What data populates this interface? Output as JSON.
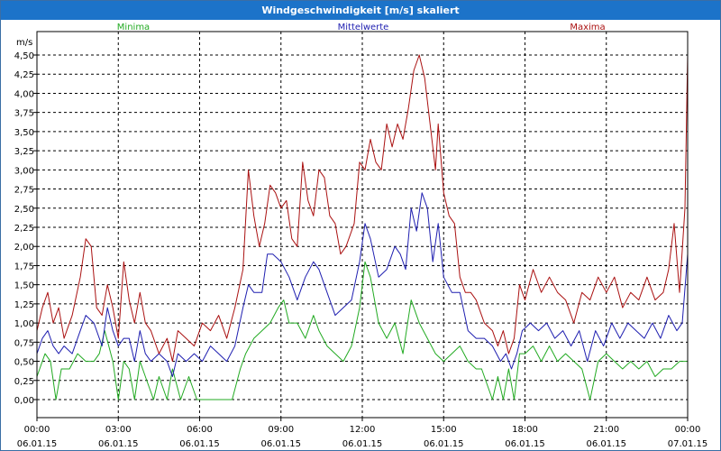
{
  "window": {
    "title": "Windgeschwindigkeit [m/s] skaliert"
  },
  "chart_data": {
    "type": "line",
    "title": "Windgeschwindigkeit [m/s] skaliert",
    "ylabel": "m/s",
    "ylim": [
      0,
      4.5
    ],
    "y_ticks": [
      "0,00",
      "0,25",
      "0,50",
      "0,75",
      "1,00",
      "1,25",
      "1,50",
      "1,75",
      "2,00",
      "2,25",
      "2,50",
      "2,75",
      "3,00",
      "3,25",
      "3,50",
      "3,75",
      "4,00",
      "4,25",
      "4,50"
    ],
    "x_range_hours": [
      0,
      24
    ],
    "x_ticks": [
      {
        "time": "00:00",
        "date": "06.01.15"
      },
      {
        "time": "03:00",
        "date": "06.01.15"
      },
      {
        "time": "06:00",
        "date": "06.01.15"
      },
      {
        "time": "09:00",
        "date": "06.01.15"
      },
      {
        "time": "12:00",
        "date": "06.01.15"
      },
      {
        "time": "15:00",
        "date": "06.01.15"
      },
      {
        "time": "18:00",
        "date": "06.01.15"
      },
      {
        "time": "21:00",
        "date": "06.01.15"
      },
      {
        "time": "00:00",
        "date": "07.01.15"
      }
    ],
    "grid": true,
    "legend_placement": "top",
    "series": [
      {
        "name": "Minima",
        "color": "#22aa22",
        "points": [
          [
            0,
            0.3
          ],
          [
            0.3,
            0.6
          ],
          [
            0.5,
            0.5
          ],
          [
            0.7,
            0.0
          ],
          [
            0.9,
            0.4
          ],
          [
            1.2,
            0.4
          ],
          [
            1.5,
            0.6
          ],
          [
            1.8,
            0.5
          ],
          [
            2.1,
            0.5
          ],
          [
            2.3,
            0.6
          ],
          [
            2.5,
            0.9
          ],
          [
            2.8,
            0.5
          ],
          [
            3.0,
            0.0
          ],
          [
            3.2,
            0.5
          ],
          [
            3.4,
            0.4
          ],
          [
            3.6,
            0.0
          ],
          [
            3.8,
            0.5
          ],
          [
            4.0,
            0.3
          ],
          [
            4.3,
            0.0
          ],
          [
            4.5,
            0.3
          ],
          [
            4.8,
            0.0
          ],
          [
            5.0,
            0.4
          ],
          [
            5.3,
            0.0
          ],
          [
            5.6,
            0.3
          ],
          [
            5.9,
            0.0
          ],
          [
            6.2,
            0.0
          ],
          [
            6.8,
            0.0
          ],
          [
            7.2,
            0.0
          ],
          [
            7.5,
            0.4
          ],
          [
            7.7,
            0.6
          ],
          [
            8.0,
            0.8
          ],
          [
            8.3,
            0.9
          ],
          [
            8.6,
            1.0
          ],
          [
            8.9,
            1.2
          ],
          [
            9.1,
            1.3
          ],
          [
            9.3,
            1.0
          ],
          [
            9.6,
            1.0
          ],
          [
            9.9,
            0.8
          ],
          [
            10.2,
            1.1
          ],
          [
            10.4,
            0.9
          ],
          [
            10.7,
            0.7
          ],
          [
            11.0,
            0.6
          ],
          [
            11.3,
            0.5
          ],
          [
            11.6,
            0.7
          ],
          [
            11.9,
            1.2
          ],
          [
            12.1,
            1.8
          ],
          [
            12.3,
            1.6
          ],
          [
            12.6,
            1.0
          ],
          [
            12.9,
            0.8
          ],
          [
            13.2,
            1.0
          ],
          [
            13.5,
            0.6
          ],
          [
            13.8,
            1.3
          ],
          [
            14.1,
            1.0
          ],
          [
            14.4,
            0.8
          ],
          [
            14.7,
            0.6
          ],
          [
            15.0,
            0.5
          ],
          [
            15.3,
            0.6
          ],
          [
            15.6,
            0.7
          ],
          [
            15.9,
            0.5
          ],
          [
            16.2,
            0.4
          ],
          [
            16.4,
            0.4
          ],
          [
            16.6,
            0.2
          ],
          [
            16.8,
            0.0
          ],
          [
            17.0,
            0.3
          ],
          [
            17.2,
            0.0
          ],
          [
            17.4,
            0.4
          ],
          [
            17.6,
            0.0
          ],
          [
            17.8,
            0.6
          ],
          [
            18.0,
            0.6
          ],
          [
            18.3,
            0.7
          ],
          [
            18.6,
            0.5
          ],
          [
            18.9,
            0.7
          ],
          [
            19.2,
            0.5
          ],
          [
            19.5,
            0.6
          ],
          [
            19.8,
            0.5
          ],
          [
            20.1,
            0.4
          ],
          [
            20.4,
            0.0
          ],
          [
            20.7,
            0.5
          ],
          [
            21.0,
            0.6
          ],
          [
            21.3,
            0.5
          ],
          [
            21.6,
            0.4
          ],
          [
            21.9,
            0.5
          ],
          [
            22.2,
            0.4
          ],
          [
            22.5,
            0.5
          ],
          [
            22.8,
            0.3
          ],
          [
            23.1,
            0.4
          ],
          [
            23.4,
            0.4
          ],
          [
            23.7,
            0.5
          ],
          [
            24.0,
            0.5
          ]
        ]
      },
      {
        "name": "Mittelwerte",
        "color": "#1f1fb0",
        "points": [
          [
            0,
            0.6
          ],
          [
            0.2,
            0.8
          ],
          [
            0.4,
            0.9
          ],
          [
            0.6,
            0.7
          ],
          [
            0.8,
            0.6
          ],
          [
            1.0,
            0.7
          ],
          [
            1.3,
            0.6
          ],
          [
            1.6,
            0.9
          ],
          [
            1.8,
            1.1
          ],
          [
            2.1,
            1.0
          ],
          [
            2.4,
            0.7
          ],
          [
            2.6,
            1.2
          ],
          [
            2.8,
            0.9
          ],
          [
            3.0,
            0.7
          ],
          [
            3.2,
            0.8
          ],
          [
            3.4,
            0.8
          ],
          [
            3.6,
            0.5
          ],
          [
            3.8,
            0.9
          ],
          [
            4.0,
            0.6
          ],
          [
            4.2,
            0.5
          ],
          [
            4.5,
            0.6
          ],
          [
            4.8,
            0.5
          ],
          [
            5.0,
            0.3
          ],
          [
            5.2,
            0.6
          ],
          [
            5.5,
            0.5
          ],
          [
            5.8,
            0.6
          ],
          [
            6.1,
            0.5
          ],
          [
            6.4,
            0.7
          ],
          [
            6.7,
            0.6
          ],
          [
            7.0,
            0.5
          ],
          [
            7.3,
            0.7
          ],
          [
            7.6,
            1.2
          ],
          [
            7.8,
            1.5
          ],
          [
            8.0,
            1.4
          ],
          [
            8.3,
            1.4
          ],
          [
            8.5,
            1.9
          ],
          [
            8.7,
            1.9
          ],
          [
            9.0,
            1.8
          ],
          [
            9.3,
            1.6
          ],
          [
            9.6,
            1.3
          ],
          [
            9.9,
            1.6
          ],
          [
            10.2,
            1.8
          ],
          [
            10.4,
            1.7
          ],
          [
            10.7,
            1.4
          ],
          [
            11.0,
            1.1
          ],
          [
            11.3,
            1.2
          ],
          [
            11.6,
            1.3
          ],
          [
            11.9,
            1.8
          ],
          [
            12.1,
            2.3
          ],
          [
            12.3,
            2.1
          ],
          [
            12.6,
            1.6
          ],
          [
            12.9,
            1.7
          ],
          [
            13.2,
            2.0
          ],
          [
            13.4,
            1.9
          ],
          [
            13.6,
            1.7
          ],
          [
            13.8,
            2.5
          ],
          [
            14.0,
            2.2
          ],
          [
            14.2,
            2.7
          ],
          [
            14.4,
            2.5
          ],
          [
            14.6,
            1.8
          ],
          [
            14.8,
            2.3
          ],
          [
            15.0,
            1.6
          ],
          [
            15.3,
            1.4
          ],
          [
            15.6,
            1.4
          ],
          [
            15.9,
            0.9
          ],
          [
            16.2,
            0.8
          ],
          [
            16.5,
            0.8
          ],
          [
            16.8,
            0.7
          ],
          [
            17.1,
            0.5
          ],
          [
            17.3,
            0.6
          ],
          [
            17.5,
            0.4
          ],
          [
            17.7,
            0.6
          ],
          [
            17.9,
            0.9
          ],
          [
            18.2,
            1.0
          ],
          [
            18.5,
            0.9
          ],
          [
            18.8,
            1.0
          ],
          [
            19.1,
            0.8
          ],
          [
            19.4,
            0.9
          ],
          [
            19.7,
            0.7
          ],
          [
            20.0,
            0.9
          ],
          [
            20.3,
            0.5
          ],
          [
            20.6,
            0.9
          ],
          [
            20.9,
            0.7
          ],
          [
            21.2,
            1.0
          ],
          [
            21.5,
            0.8
          ],
          [
            21.8,
            1.0
          ],
          [
            22.1,
            0.9
          ],
          [
            22.4,
            0.8
          ],
          [
            22.7,
            1.0
          ],
          [
            23.0,
            0.8
          ],
          [
            23.3,
            1.1
          ],
          [
            23.6,
            0.9
          ],
          [
            23.8,
            1.0
          ],
          [
            24.0,
            1.9
          ]
        ]
      },
      {
        "name": "Maxima",
        "color": "#aa1111",
        "points": [
          [
            0,
            0.9
          ],
          [
            0.2,
            1.2
          ],
          [
            0.4,
            1.4
          ],
          [
            0.6,
            1.0
          ],
          [
            0.8,
            1.2
          ],
          [
            1.0,
            0.8
          ],
          [
            1.3,
            1.1
          ],
          [
            1.6,
            1.6
          ],
          [
            1.8,
            2.1
          ],
          [
            2.0,
            2.0
          ],
          [
            2.2,
            1.2
          ],
          [
            2.4,
            1.1
          ],
          [
            2.6,
            1.5
          ],
          [
            2.8,
            1.2
          ],
          [
            3.0,
            0.8
          ],
          [
            3.2,
            1.8
          ],
          [
            3.4,
            1.3
          ],
          [
            3.6,
            1.0
          ],
          [
            3.8,
            1.4
          ],
          [
            4.0,
            1.0
          ],
          [
            4.2,
            0.9
          ],
          [
            4.5,
            0.6
          ],
          [
            4.8,
            0.8
          ],
          [
            5.0,
            0.5
          ],
          [
            5.2,
            0.9
          ],
          [
            5.5,
            0.8
          ],
          [
            5.8,
            0.7
          ],
          [
            6.1,
            1.0
          ],
          [
            6.4,
            0.9
          ],
          [
            6.7,
            1.1
          ],
          [
            7.0,
            0.8
          ],
          [
            7.3,
            1.2
          ],
          [
            7.6,
            1.7
          ],
          [
            7.8,
            3.0
          ],
          [
            8.0,
            2.4
          ],
          [
            8.2,
            2.0
          ],
          [
            8.4,
            2.3
          ],
          [
            8.6,
            2.8
          ],
          [
            8.8,
            2.7
          ],
          [
            9.0,
            2.5
          ],
          [
            9.2,
            2.6
          ],
          [
            9.4,
            2.1
          ],
          [
            9.6,
            2.0
          ],
          [
            9.8,
            3.1
          ],
          [
            10.0,
            2.6
          ],
          [
            10.2,
            2.4
          ],
          [
            10.4,
            3.0
          ],
          [
            10.6,
            2.9
          ],
          [
            10.8,
            2.4
          ],
          [
            11.0,
            2.3
          ],
          [
            11.2,
            1.9
          ],
          [
            11.4,
            2.0
          ],
          [
            11.7,
            2.3
          ],
          [
            11.9,
            3.1
          ],
          [
            12.1,
            3.0
          ],
          [
            12.3,
            3.4
          ],
          [
            12.5,
            3.1
          ],
          [
            12.7,
            3.0
          ],
          [
            12.9,
            3.6
          ],
          [
            13.1,
            3.3
          ],
          [
            13.3,
            3.6
          ],
          [
            13.5,
            3.4
          ],
          [
            13.7,
            3.8
          ],
          [
            13.9,
            4.3
          ],
          [
            14.1,
            4.5
          ],
          [
            14.3,
            4.2
          ],
          [
            14.5,
            3.6
          ],
          [
            14.7,
            3.0
          ],
          [
            14.8,
            3.6
          ],
          [
            15.0,
            2.7
          ],
          [
            15.2,
            2.4
          ],
          [
            15.4,
            2.3
          ],
          [
            15.6,
            1.6
          ],
          [
            15.8,
            1.4
          ],
          [
            16.0,
            1.4
          ],
          [
            16.2,
            1.3
          ],
          [
            16.5,
            1.0
          ],
          [
            16.8,
            0.9
          ],
          [
            17.0,
            0.7
          ],
          [
            17.2,
            0.9
          ],
          [
            17.4,
            0.6
          ],
          [
            17.6,
            0.8
          ],
          [
            17.8,
            1.5
          ],
          [
            18.0,
            1.3
          ],
          [
            18.3,
            1.7
          ],
          [
            18.6,
            1.4
          ],
          [
            18.9,
            1.6
          ],
          [
            19.2,
            1.4
          ],
          [
            19.5,
            1.3
          ],
          [
            19.8,
            1.0
          ],
          [
            20.1,
            1.4
          ],
          [
            20.4,
            1.3
          ],
          [
            20.7,
            1.6
          ],
          [
            21.0,
            1.4
          ],
          [
            21.3,
            1.6
          ],
          [
            21.6,
            1.2
          ],
          [
            21.9,
            1.4
          ],
          [
            22.2,
            1.3
          ],
          [
            22.5,
            1.6
          ],
          [
            22.8,
            1.3
          ],
          [
            23.1,
            1.4
          ],
          [
            23.3,
            1.7
          ],
          [
            23.5,
            2.3
          ],
          [
            23.7,
            1.4
          ],
          [
            23.9,
            2.5
          ],
          [
            24.0,
            4.5
          ]
        ]
      }
    ]
  }
}
